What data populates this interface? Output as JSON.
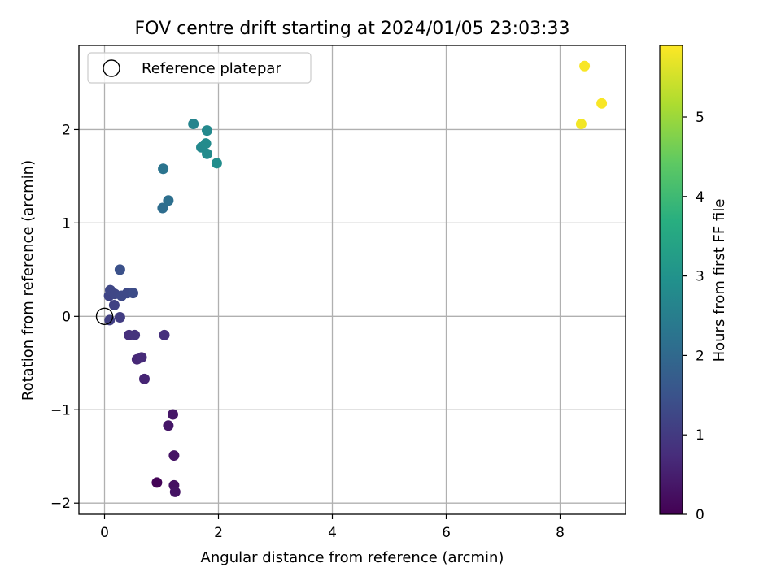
{
  "chart_data": {
    "type": "scatter",
    "title": "FOV centre drift starting at 2024/01/05 23:03:33",
    "xlabel": "Angular distance from reference (arcmin)",
    "ylabel": "Rotation from reference (arcmin)",
    "xlim": [
      -0.45,
      9.15
    ],
    "ylim": [
      -2.12,
      2.9
    ],
    "xticks": [
      0,
      2,
      4,
      6,
      8
    ],
    "xtick_labels": [
      "0",
      "2",
      "4",
      "6",
      "8"
    ],
    "yticks": [
      -2,
      -1,
      0,
      1,
      2
    ],
    "ytick_labels": [
      "−2",
      "−1",
      "0",
      "1",
      "2"
    ],
    "grid": true,
    "legend_position": "top-left",
    "colormap": "viridis",
    "colors": [
      "#440154",
      "#3b528b",
      "#21918c",
      "#5ec962",
      "#fde725"
    ],
    "colorbar": {
      "label": "Hours from first FF file",
      "range": [
        0,
        5.9
      ],
      "ticks": [
        0,
        1,
        2,
        3,
        4,
        5
      ],
      "tick_labels": [
        "0",
        "1",
        "2",
        "3",
        "4",
        "5"
      ]
    },
    "reference": {
      "name": "Reference platepar",
      "x": 0,
      "y": 0,
      "marker": "open-circle"
    },
    "points": [
      {
        "x": 0.92,
        "y": -1.78,
        "t": 0.05
      },
      {
        "x": 1.22,
        "y": -1.81,
        "t": 0.25
      },
      {
        "x": 1.24,
        "y": -1.88,
        "t": 0.3
      },
      {
        "x": 1.22,
        "y": -1.49,
        "t": 0.3
      },
      {
        "x": 1.12,
        "y": -1.17,
        "t": 0.35
      },
      {
        "x": 1.2,
        "y": -1.05,
        "t": 0.35
      },
      {
        "x": 0.7,
        "y": -0.67,
        "t": 0.6
      },
      {
        "x": 0.57,
        "y": -0.46,
        "t": 0.65
      },
      {
        "x": 0.65,
        "y": -0.44,
        "t": 0.7
      },
      {
        "x": 1.05,
        "y": -0.2,
        "t": 0.8
      },
      {
        "x": 0.43,
        "y": -0.2,
        "t": 0.8
      },
      {
        "x": 0.53,
        "y": -0.2,
        "t": 0.85
      },
      {
        "x": 0.27,
        "y": -0.01,
        "t": 1.05
      },
      {
        "x": 0.09,
        "y": -0.04,
        "t": 1.1
      },
      {
        "x": 0.17,
        "y": 0.12,
        "t": 1.15
      },
      {
        "x": 0.08,
        "y": 0.22,
        "t": 1.2
      },
      {
        "x": 0.12,
        "y": 0.25,
        "t": 1.2
      },
      {
        "x": 0.1,
        "y": 0.28,
        "t": 1.25
      },
      {
        "x": 0.18,
        "y": 0.24,
        "t": 1.25
      },
      {
        "x": 0.3,
        "y": 0.22,
        "t": 1.3
      },
      {
        "x": 0.4,
        "y": 0.25,
        "t": 1.3
      },
      {
        "x": 0.5,
        "y": 0.25,
        "t": 1.35
      },
      {
        "x": 0.27,
        "y": 0.5,
        "t": 1.45
      },
      {
        "x": 1.02,
        "y": 1.16,
        "t": 2.1
      },
      {
        "x": 1.12,
        "y": 1.24,
        "t": 2.15
      },
      {
        "x": 1.03,
        "y": 1.58,
        "t": 2.25
      },
      {
        "x": 1.56,
        "y": 2.06,
        "t": 2.65
      },
      {
        "x": 1.8,
        "y": 1.99,
        "t": 2.75
      },
      {
        "x": 1.7,
        "y": 1.81,
        "t": 2.75
      },
      {
        "x": 1.78,
        "y": 1.85,
        "t": 2.8
      },
      {
        "x": 1.8,
        "y": 1.74,
        "t": 2.8
      },
      {
        "x": 1.97,
        "y": 1.64,
        "t": 2.85
      },
      {
        "x": 8.37,
        "y": 2.06,
        "t": 5.8
      },
      {
        "x": 8.43,
        "y": 2.68,
        "t": 5.85
      },
      {
        "x": 8.73,
        "y": 2.28,
        "t": 5.85
      }
    ]
  }
}
